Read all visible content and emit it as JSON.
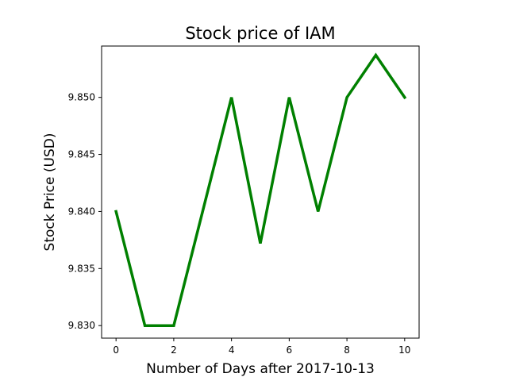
{
  "chart_data": {
    "type": "line",
    "title": "Stock price of IAM",
    "xlabel": "Number of Days after 2017-10-13",
    "ylabel": "Stock Price (USD)",
    "x": [
      0,
      1,
      2,
      3,
      4,
      5,
      6,
      7,
      8,
      9,
      10
    ],
    "series": [
      {
        "values": [
          9.84,
          9.83,
          9.83,
          9.84,
          9.85,
          9.8372,
          9.85,
          9.84,
          9.85,
          9.8537,
          9.85
        ],
        "color": "#008000"
      }
    ],
    "xlim": [
      -0.5,
      10.5
    ],
    "ylim": [
      9.8289,
      9.8545
    ],
    "xticks": [
      0,
      2,
      4,
      6,
      8,
      10
    ],
    "xtick_labels": [
      "0",
      "2",
      "4",
      "6",
      "8",
      "10"
    ],
    "yticks": [
      9.83,
      9.835,
      9.84,
      9.845,
      9.85
    ],
    "ytick_labels": [
      "9.830",
      "9.835",
      "9.840",
      "9.845",
      "9.850"
    ],
    "grid": false,
    "legend": "none"
  }
}
